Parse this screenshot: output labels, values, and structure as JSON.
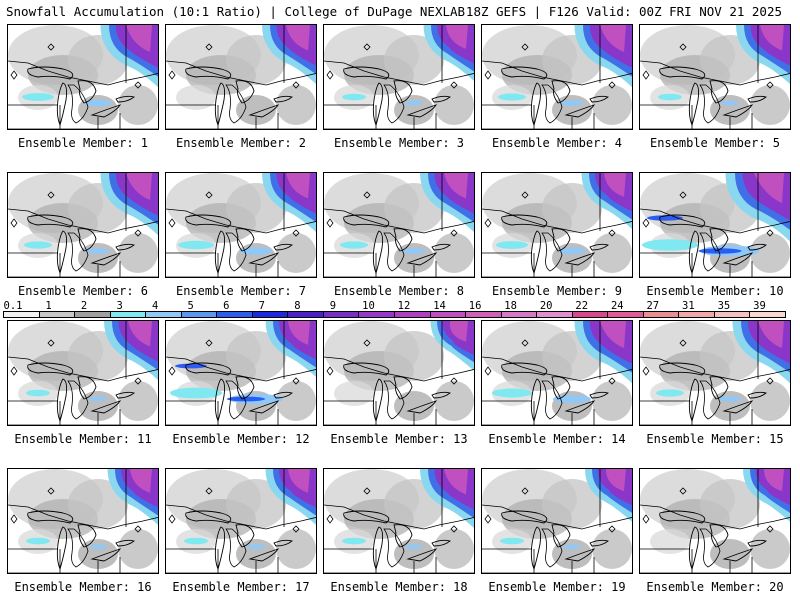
{
  "header": {
    "title_left": "Snowfall Accumulation (10:1 Ratio) | College of DuPage NEXLAB",
    "title_right": "18Z GEFS | F126 Valid: 00Z FRI NOV 21 2025"
  },
  "members": [
    {
      "label": "Ensemble Member: 1",
      "intensity": 0.85,
      "lake_effect": 0.3
    },
    {
      "label": "Ensemble Member: 2",
      "intensity": 0.8,
      "lake_effect": 0.0
    },
    {
      "label": "Ensemble Member: 3",
      "intensity": 0.75,
      "lake_effect": 0.1
    },
    {
      "label": "Ensemble Member: 4",
      "intensity": 0.85,
      "lake_effect": 0.2
    },
    {
      "label": "Ensemble Member: 5",
      "intensity": 0.8,
      "lake_effect": 0.1
    },
    {
      "label": "Ensemble Member: 6",
      "intensity": 0.85,
      "lake_effect": 0.2
    },
    {
      "label": "Ensemble Member: 7",
      "intensity": 0.8,
      "lake_effect": 0.4
    },
    {
      "label": "Ensemble Member: 8",
      "intensity": 0.8,
      "lake_effect": 0.2
    },
    {
      "label": "Ensemble Member: 9",
      "intensity": 0.75,
      "lake_effect": 0.3
    },
    {
      "label": "Ensemble Member: 10",
      "intensity": 0.95,
      "lake_effect": 0.9
    },
    {
      "label": "Ensemble Member: 11",
      "intensity": 0.8,
      "lake_effect": 0.1
    },
    {
      "label": "Ensemble Member: 12",
      "intensity": 0.75,
      "lake_effect": 0.8
    },
    {
      "label": "Ensemble Member: 13",
      "intensity": 0.65,
      "lake_effect": 0.0
    },
    {
      "label": "Ensemble Member: 14",
      "intensity": 0.85,
      "lake_effect": 0.5
    },
    {
      "label": "Ensemble Member: 15",
      "intensity": 0.85,
      "lake_effect": 0.2
    },
    {
      "label": "Ensemble Member: 16",
      "intensity": 0.75,
      "lake_effect": 0.1
    },
    {
      "label": "Ensemble Member: 17",
      "intensity": 0.75,
      "lake_effect": 0.1
    },
    {
      "label": "Ensemble Member: 18",
      "intensity": 0.8,
      "lake_effect": 0.1
    },
    {
      "label": "Ensemble Member: 19",
      "intensity": 0.7,
      "lake_effect": 0.1
    },
    {
      "label": "Ensemble Member: 20",
      "intensity": 0.7,
      "lake_effect": 0.0
    }
  ],
  "colorbar": {
    "levels": [
      "0.1",
      "1",
      "2",
      "3",
      "4",
      "5",
      "6",
      "7",
      "8",
      "9",
      "10",
      "12",
      "14",
      "16",
      "18",
      "20",
      "22",
      "24",
      "27",
      "31",
      "35",
      "39"
    ],
    "colors": [
      "#f2f2f2",
      "#c8c8c8",
      "#a0a0a0",
      "#80e8f0",
      "#90c8f8",
      "#5a98ee",
      "#2c5cf0",
      "#1a2ae0",
      "#4a20c8",
      "#7a2ec8",
      "#9838c8",
      "#b040c0",
      "#c050c0",
      "#d060b8",
      "#d878c8",
      "#e090d0",
      "#d84890",
      "#e05c98",
      "#e89090",
      "#f0a8a8",
      "#f5c0c0",
      "#f8d8d0"
    ]
  }
}
